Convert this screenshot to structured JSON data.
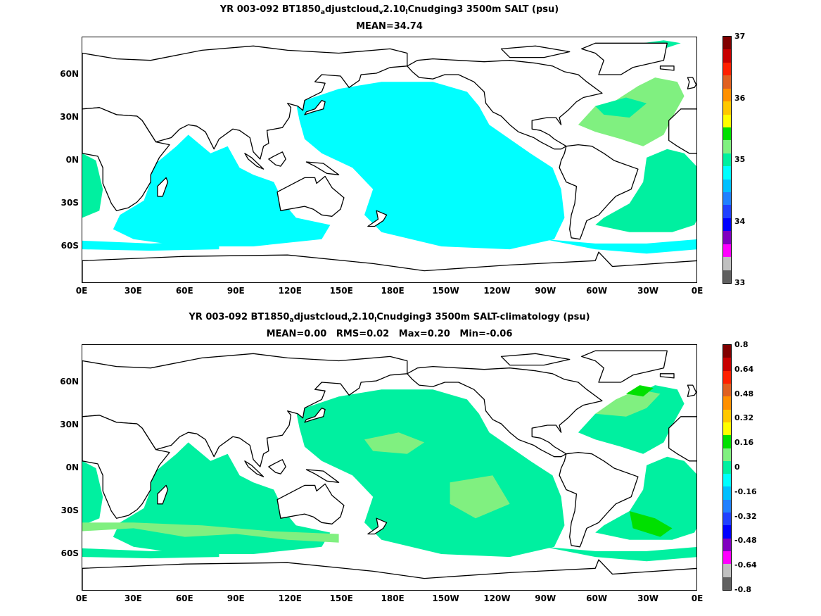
{
  "top": {
    "title_prefix": "YR 003-092 BT1850",
    "title_sub1": "a",
    "title_mid1": "djustcloud",
    "title_sub2": "v",
    "title_mid2": "2.10",
    "title_sub3": "l",
    "title_suffix": "Cnudging3 3500m SALT (psu)",
    "stats": "MEAN=34.74"
  },
  "bottom": {
    "title_prefix": "YR 003-092 BT1850",
    "title_sub1": "a",
    "title_mid1": "djustcloud",
    "title_sub2": "v",
    "title_mid2": "2.10",
    "title_sub3": "l",
    "title_suffix": "Cnudging3 3500m SALT-climatology (psu)",
    "stats": "MEAN=0.00   RMS=0.02   Max=0.20   Min=-0.06"
  },
  "chart_data": [
    {
      "type": "heatmap",
      "title": "YR 003-092 BT1850_adjustcloud_v2.10_lCnudging3 3500m SALT (psu)",
      "subtitle": "MEAN=34.74",
      "x_ticks": [
        "0E",
        "30E",
        "60E",
        "90E",
        "120E",
        "150E",
        "180E",
        "150W",
        "120W",
        "90W",
        "60W",
        "30W",
        "0E"
      ],
      "y_ticks": [
        "60N",
        "30N",
        "0N",
        "30S",
        "60S"
      ],
      "colorbar": {
        "range": [
          33,
          37
        ],
        "tick_labels": [
          "37",
          "36",
          "35",
          "34",
          "33"
        ],
        "colors_top_to_bottom": [
          "#800000",
          "#c80000",
          "#ff2000",
          "#e06020",
          "#ff9000",
          "#ffc800",
          "#ffff00",
          "#00e000",
          "#80f080",
          "#00f0a0",
          "#00ffff",
          "#00c0ff",
          "#2080ff",
          "#2040ff",
          "#0000ff",
          "#8000c0",
          "#ff00ff",
          "#c0c0c0",
          "#606060"
        ]
      },
      "dominant_values": {
        "pacific_indian_deep": 34.7,
        "atlantic_deep": 34.9,
        "north_atlantic_deep": 34.95
      }
    },
    {
      "type": "heatmap",
      "title": "YR 003-092 BT1850_adjustcloud_v2.10_lCnudging3 3500m SALT-climatology (psu)",
      "subtitle": "MEAN=0.00   RMS=0.02   Max=0.20   Min=-0.06",
      "x_ticks": [
        "0E",
        "30E",
        "60E",
        "90E",
        "120E",
        "150E",
        "180E",
        "150W",
        "120W",
        "90W",
        "60W",
        "30W",
        "0E"
      ],
      "y_ticks": [
        "60N",
        "30N",
        "0N",
        "30S",
        "60S"
      ],
      "colorbar": {
        "range": [
          -0.8,
          0.8
        ],
        "tick_labels": [
          "0.8",
          "0.64",
          "0.48",
          "0.32",
          "0.16",
          "0",
          "-0.16",
          "-0.32",
          "-0.48",
          "-0.64",
          "-0.8"
        ],
        "colors_top_to_bottom": [
          "#800000",
          "#c80000",
          "#ff2000",
          "#e06020",
          "#ff9000",
          "#ffc800",
          "#ffff00",
          "#00e000",
          "#80f080",
          "#00f0a0",
          "#00ffff",
          "#00c0ff",
          "#2080ff",
          "#2040ff",
          "#0000ff",
          "#8000c0",
          "#ff00ff",
          "#c0c0c0",
          "#606060"
        ]
      },
      "stats": {
        "mean": 0.0,
        "rms": 0.02,
        "max": 0.2,
        "min": -0.06
      }
    }
  ],
  "colors": {
    "ocean_top": "#00ffff",
    "ocean_top_atlantic": "#00f0a0",
    "ocean_top_nat": "#80f080",
    "ocean_bottom": "#00f0a0",
    "ocean_bottom_pos": "#80f080",
    "ocean_bottom_hi": "#00e000",
    "land": "#ffffff",
    "coast": "#000000"
  }
}
